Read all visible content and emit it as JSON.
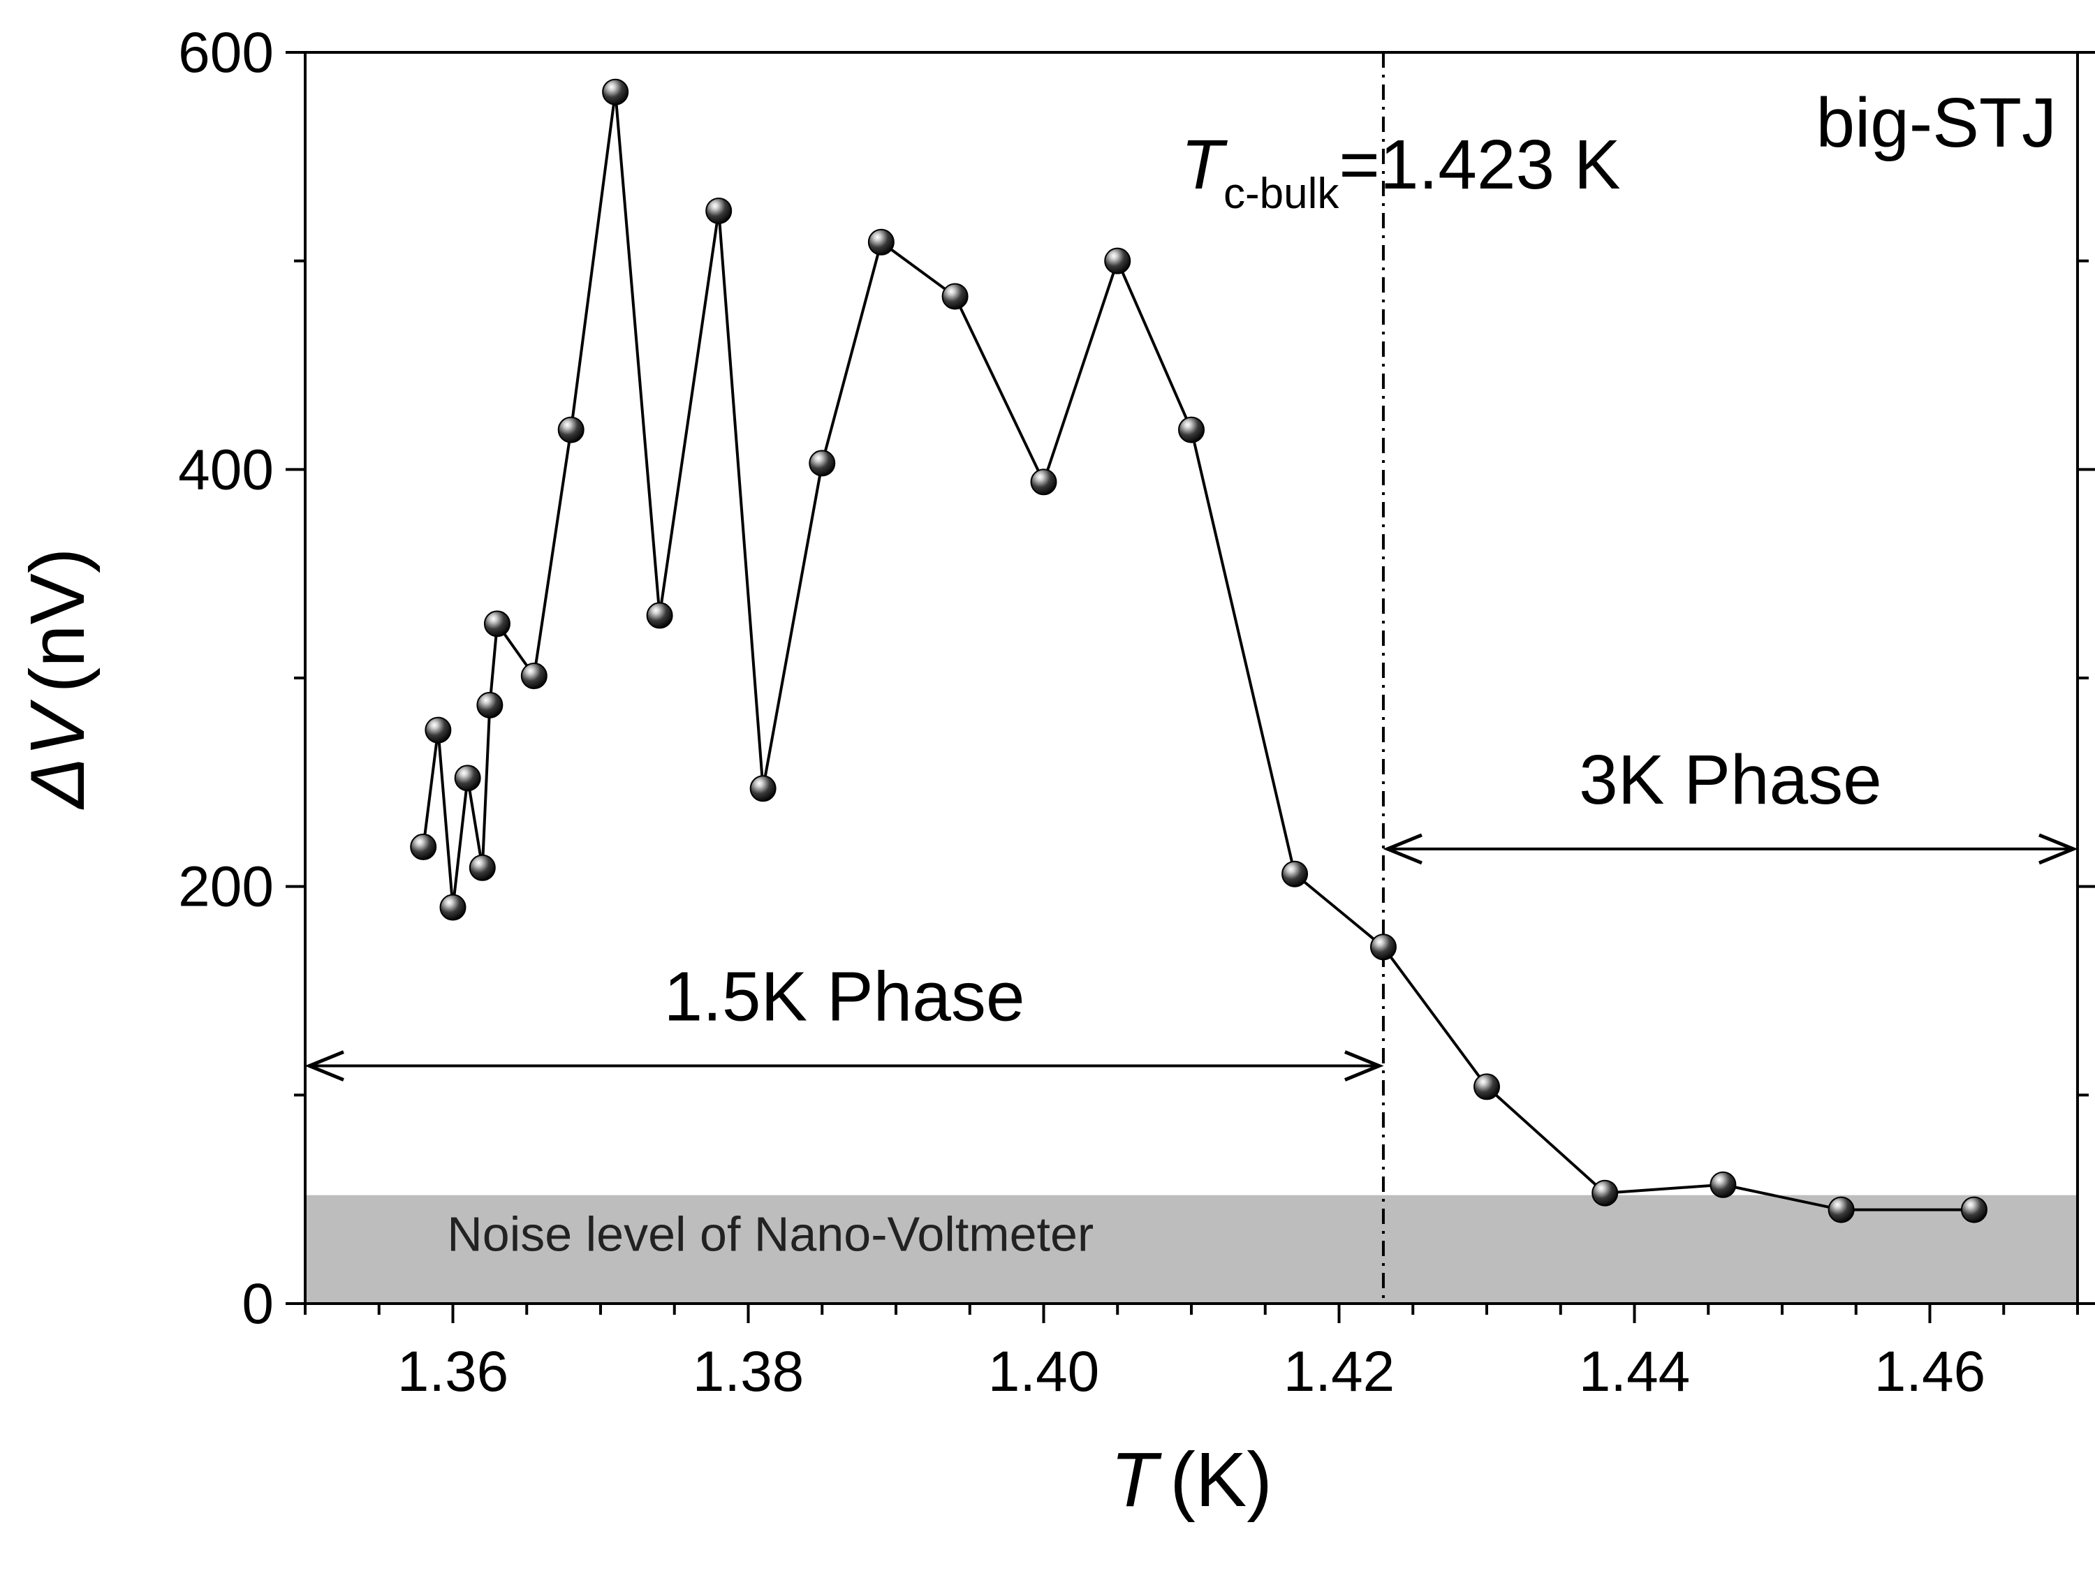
{
  "chart_data": {
    "type": "scatter",
    "title": "",
    "sample_label": "big-STJ",
    "xlabel": {
      "symbol": "T",
      "unit": "(K)"
    },
    "ylabel": {
      "symbol": "ΔV",
      "unit": "(nV)"
    },
    "xlim": [
      1.35,
      1.47
    ],
    "ylim": [
      0,
      600
    ],
    "xticks": [
      1.36,
      1.38,
      1.4,
      1.42,
      1.44,
      1.46
    ],
    "xtick_labels": [
      "1.36",
      "1.38",
      "1.40",
      "1.42",
      "1.44",
      "1.46"
    ],
    "yticks": [
      0,
      200,
      400,
      600
    ],
    "ytick_labels": [
      "0",
      "200",
      "400",
      "600"
    ],
    "x_minor_step": 0.005,
    "y_minor_step": 100,
    "series": [
      {
        "name": "ΔV",
        "x": [
          1.358,
          1.359,
          1.36,
          1.361,
          1.362,
          1.3625,
          1.363,
          1.3655,
          1.368,
          1.371,
          1.374,
          1.378,
          1.381,
          1.385,
          1.389,
          1.394,
          1.4,
          1.405,
          1.41,
          1.417,
          1.423,
          1.43,
          1.438,
          1.446,
          1.454,
          1.463
        ],
        "y": [
          219,
          275,
          190,
          252,
          209,
          287,
          326,
          301,
          419,
          581,
          330,
          524,
          247,
          403,
          509,
          483,
          394,
          500,
          419,
          206,
          171,
          104,
          53,
          57,
          45,
          45
        ]
      }
    ],
    "noise_band": {
      "y_max": 52,
      "label": "Noise level of Nano-Voltmeter"
    },
    "tc_line": {
      "x": 1.423,
      "label_symbol": "T",
      "label_subscript": "c-bulk",
      "label_value": "=1.423 K"
    },
    "phase_arrows": [
      {
        "label": "1.5K Phase",
        "x_start": 1.35,
        "x_end": 1.423,
        "y": 114
      },
      {
        "label": "3K Phase",
        "x_start": 1.423,
        "x_end": 1.47,
        "y": 218
      }
    ]
  }
}
